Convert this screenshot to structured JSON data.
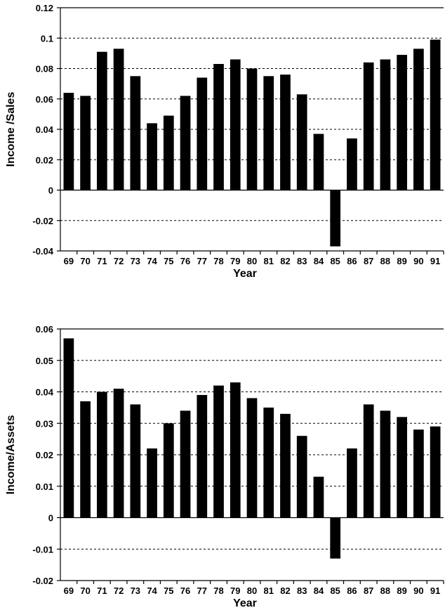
{
  "chart_data": [
    {
      "type": "bar",
      "categories": [
        "69",
        "70",
        "71",
        "72",
        "73",
        "74",
        "75",
        "76",
        "77",
        "78",
        "79",
        "80",
        "81",
        "82",
        "83",
        "84",
        "85",
        "86",
        "87",
        "88",
        "89",
        "90",
        "91"
      ],
      "values": [
        0.064,
        0.062,
        0.091,
        0.093,
        0.075,
        0.044,
        0.049,
        0.062,
        0.074,
        0.083,
        0.086,
        0.08,
        0.075,
        0.076,
        0.063,
        0.037,
        -0.037,
        0.034,
        0.084,
        0.086,
        0.089,
        0.093,
        0.099
      ],
      "xlabel": "Year",
      "ylabel": "Income /Sales",
      "ylim": [
        -0.04,
        0.12
      ],
      "yticks": [
        -0.04,
        -0.02,
        0,
        0.02,
        0.04,
        0.06,
        0.08,
        0.1,
        0.12
      ],
      "ytick_labels": [
        "-0.04",
        "-0.02",
        "0",
        "0.02",
        "0.04",
        "0.06",
        "0.08",
        "0.1",
        "0.12"
      ],
      "grid": "horizontal-dashed",
      "color": "#000000"
    },
    {
      "type": "bar",
      "categories": [
        "69",
        "70",
        "71",
        "72",
        "73",
        "74",
        "75",
        "76",
        "77",
        "78",
        "79",
        "80",
        "81",
        "82",
        "83",
        "84",
        "85",
        "86",
        "87",
        "88",
        "89",
        "90",
        "91"
      ],
      "values": [
        0.057,
        0.037,
        0.04,
        0.041,
        0.036,
        0.022,
        0.03,
        0.034,
        0.039,
        0.042,
        0.043,
        0.038,
        0.035,
        0.033,
        0.026,
        0.013,
        -0.013,
        0.022,
        0.036,
        0.034,
        0.032,
        0.028,
        0.029
      ],
      "xlabel": "Year",
      "ylabel": "Income/Assets",
      "ylim": [
        -0.02,
        0.06
      ],
      "yticks": [
        -0.02,
        -0.01,
        0,
        0.01,
        0.02,
        0.03,
        0.04,
        0.05,
        0.06
      ],
      "ytick_labels": [
        "-0.02",
        "-0.01",
        "0",
        "0.01",
        "0.02",
        "0.03",
        "0.04",
        "0.05",
        "0.06"
      ],
      "grid": "horizontal-dashed",
      "color": "#000000"
    }
  ]
}
